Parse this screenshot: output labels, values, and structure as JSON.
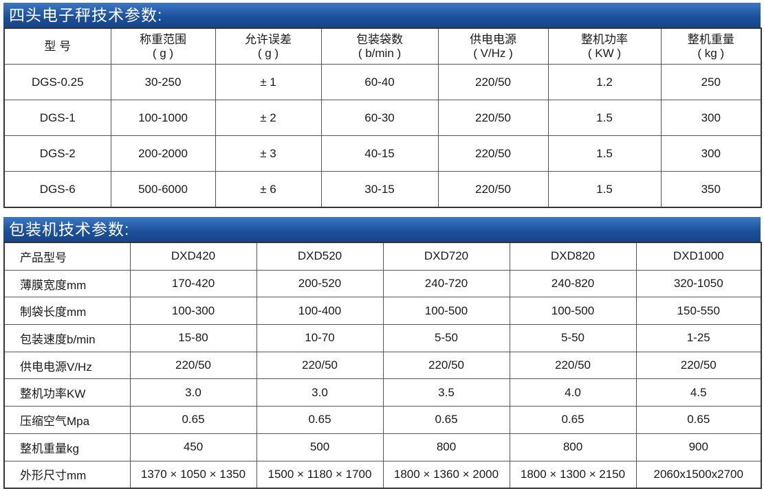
{
  "sections": [
    {
      "title": "四头电子秤技术参数:",
      "table": {
        "header": [
          [
            "型 号"
          ],
          [
            "称重范围",
            "( g )"
          ],
          [
            "允许误差",
            "( g )"
          ],
          [
            "包装袋数",
            "( b/min )"
          ],
          [
            "供电电源",
            "( V/Hz )"
          ],
          [
            "整机功率",
            "( KW )"
          ],
          [
            "整机重量",
            "( kg )"
          ]
        ],
        "rows": [
          [
            "DGS-0.25",
            "30-250",
            "± 1",
            "60-40",
            "220/50",
            "1.2",
            "250"
          ],
          [
            "DGS-1",
            "100-1000",
            "± 2",
            "60-30",
            "220/50",
            "1.5",
            "300"
          ],
          [
            "DGS-2",
            "200-2000",
            "± 3",
            "40-15",
            "220/50",
            "1.5",
            "300"
          ],
          [
            "DGS-6",
            "500-6000",
            "± 6",
            "30-15",
            "220/50",
            "1.5",
            "350"
          ]
        ]
      }
    },
    {
      "title": "包装机技术参数:",
      "table": {
        "rows": [
          [
            "产品型号",
            "DXD420",
            "DXD520",
            "DXD720",
            "DXD820",
            "DXD1000"
          ],
          [
            "薄膜宽度mm",
            "170-420",
            "200-520",
            "240-720",
            "240-820",
            "320-1050"
          ],
          [
            "制袋长度mm",
            "100-300",
            "100-400",
            "100-500",
            "100-500",
            "150-550"
          ],
          [
            "包装速度b/min",
            "15-80",
            "10-70",
            "5-50",
            "5-50",
            "1-25"
          ],
          [
            "供电电源V/Hz",
            "220/50",
            "220/50",
            "220/50",
            "220/50",
            "220/50"
          ],
          [
            "整机功率KW",
            "3.0",
            "3.0",
            "3.5",
            "4.0",
            "4.5"
          ],
          [
            "压缩空气Mpa",
            "0.65",
            "0.65",
            "0.65",
            "0.65",
            "0.65"
          ],
          [
            "整机重量kg",
            "450",
            "500",
            "800",
            "800",
            "900"
          ],
          [
            "外形尺寸mm",
            "1370 × 1050 × 1350",
            "1500 × 1180 × 1700",
            "1800 × 1360 × 2000",
            "1800 × 1300 × 2150",
            "2060x1500x2700"
          ]
        ]
      }
    }
  ]
}
